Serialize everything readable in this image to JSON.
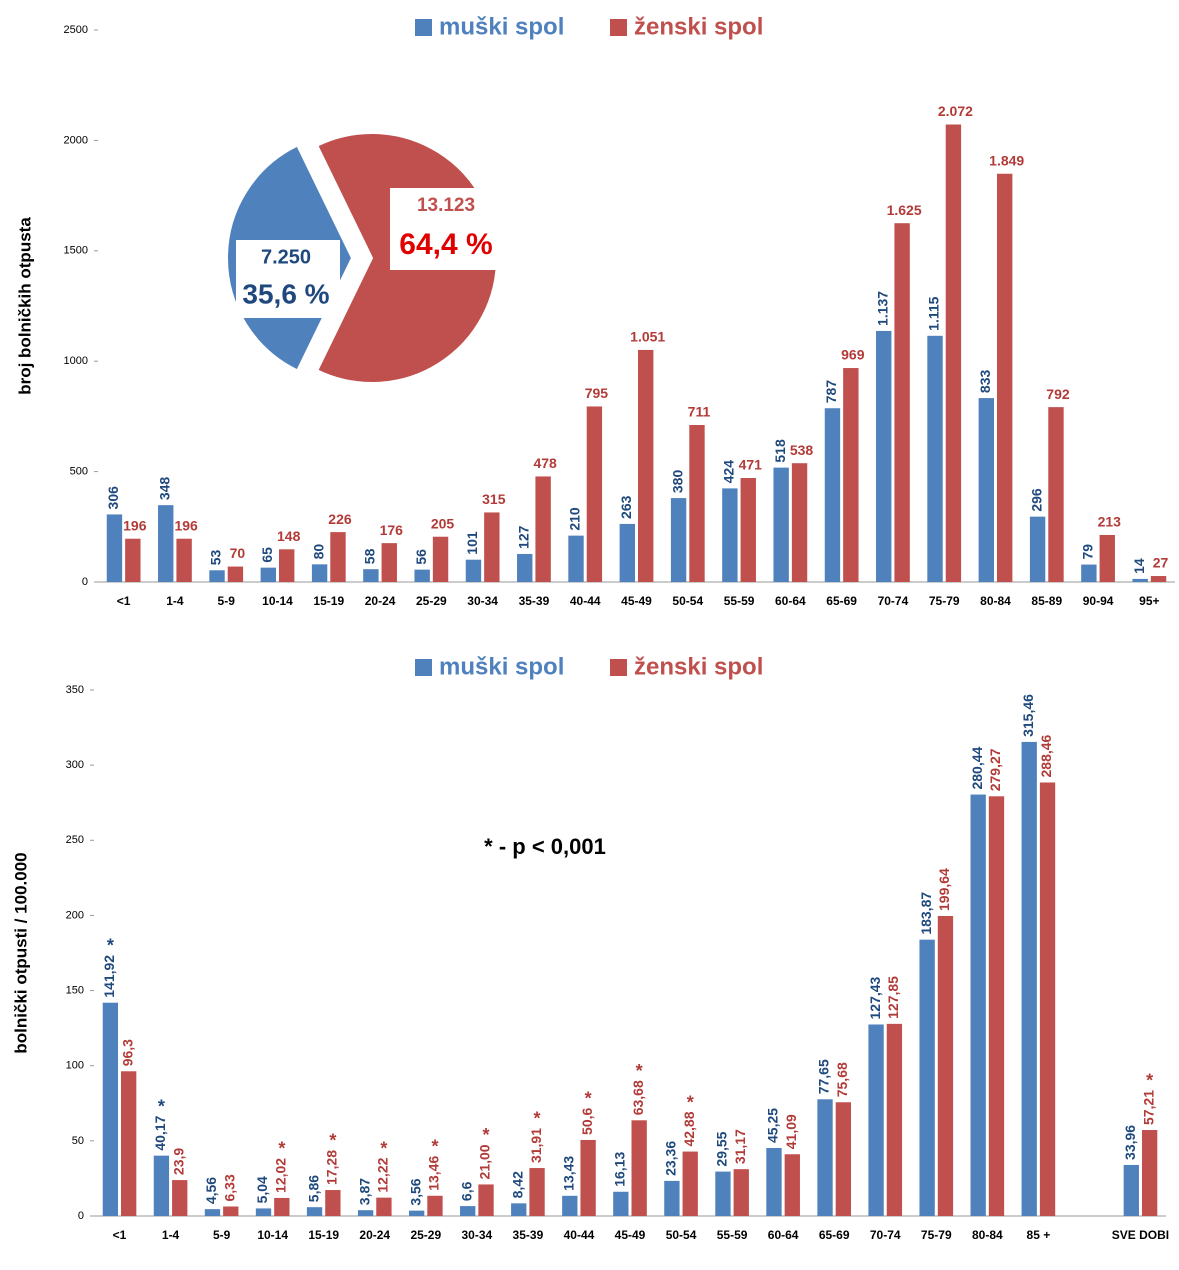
{
  "chart_data": [
    {
      "type": "bar",
      "y_label": "broj bolničkih otpusta",
      "categories": [
        "<1",
        "1-4",
        "5-9",
        "10-14",
        "15-19",
        "20-24",
        "25-29",
        "30-34",
        "35-39",
        "40-44",
        "45-49",
        "50-54",
        "55-59",
        "60-64",
        "65-69",
        "70-74",
        "75-79",
        "80-84",
        "85-89",
        "90-94",
        "95+"
      ],
      "series": [
        {
          "name": "muški spol",
          "color": "#4f81bd",
          "label_color": "#1f497d",
          "values": [
            306,
            348,
            53,
            65,
            80,
            58,
            56,
            101,
            127,
            210,
            263,
            380,
            424,
            518,
            787,
            1137,
            1115,
            833,
            296,
            79,
            14
          ],
          "value_labels": [
            "306",
            "348",
            "53",
            "65",
            "80",
            "58",
            "56",
            "101",
            "127",
            "210",
            "263",
            "380",
            "424",
            "518",
            "787",
            "1.137",
            "1.115",
            "833",
            "296",
            "79",
            "14"
          ]
        },
        {
          "name": "ženski spol",
          "color": "#c0504d",
          "label_color": "#b23b38",
          "values": [
            196,
            196,
            70,
            148,
            226,
            176,
            205,
            315,
            478,
            795,
            1051,
            711,
            471,
            538,
            969,
            1625,
            2072,
            1849,
            792,
            213,
            27
          ],
          "value_labels": [
            "196",
            "196",
            "70",
            "148",
            "226",
            "176",
            "205",
            "315",
            "478",
            "795",
            "1.051",
            "711",
            "471",
            "538",
            "969",
            "1.625",
            "2.072",
            "1.849",
            "792",
            "213",
            "27"
          ]
        }
      ],
      "ylim": [
        0,
        2500
      ],
      "yticks": [
        0,
        500,
        1000,
        1500,
        2000,
        2500
      ]
    },
    {
      "type": "pie",
      "values": [
        7250,
        13123
      ],
      "value_labels": [
        "7.250",
        "13.123"
      ],
      "percent": [
        35.6,
        64.4
      ],
      "percent_labels": [
        "35,6 %",
        "64,4 %"
      ],
      "colors": [
        "#4f81bd",
        "#c0504d"
      ]
    },
    {
      "type": "bar",
      "y_label": "bolnički otpusti / 100.000",
      "annotation": "* - p < 0,001",
      "categories": [
        "<1",
        "1-4",
        "5-9",
        "10-14",
        "15-19",
        "20-24",
        "25-29",
        "30-34",
        "35-39",
        "40-44",
        "45-49",
        "50-54",
        "55-59",
        "60-64",
        "65-69",
        "70-74",
        "75-79",
        "80-84",
        "85 +",
        null,
        "SVE DOBI"
      ],
      "series": [
        {
          "name": "muški spol",
          "color": "#4f81bd",
          "label_color": "#1f497d",
          "values": [
            141.92,
            40.17,
            4.56,
            5.04,
            5.86,
            3.87,
            3.56,
            6.6,
            8.42,
            13.43,
            16.13,
            23.36,
            29.55,
            45.25,
            77.65,
            127.43,
            183.87,
            280.44,
            315.46,
            null,
            33.96
          ],
          "value_labels": [
            "141,92",
            "40,17",
            "4,56",
            "5,04",
            "5,86",
            "3,87",
            "3,56",
            "6,6",
            "8,42",
            "13,43",
            "16,13",
            "23,36",
            "29,55",
            "45,25",
            "77,65",
            "127,43",
            "183,87",
            "280,44",
            "315,46",
            null,
            "33,96"
          ],
          "annotations": [
            "*",
            "*",
            null,
            null,
            null,
            null,
            null,
            null,
            null,
            null,
            null,
            null,
            null,
            null,
            null,
            null,
            null,
            null,
            null,
            null,
            null
          ]
        },
        {
          "name": "ženski spol",
          "color": "#c0504d",
          "label_color": "#b23b38",
          "values": [
            96.3,
            23.9,
            6.33,
            12.02,
            17.28,
            12.22,
            13.46,
            21.0,
            31.91,
            50.6,
            63.68,
            42.88,
            31.17,
            41.09,
            75.68,
            127.85,
            199.64,
            279.27,
            288.46,
            null,
            57.21
          ],
          "value_labels": [
            "96,3",
            "23,9",
            "6,33",
            "12,02",
            "17,28",
            "12,22",
            "13,46",
            "21,00",
            "31,91",
            "50,6",
            "63,68",
            "42,88",
            "31,17",
            "41,09",
            "75,68",
            "127,85",
            "199,64",
            "279,27",
            "288,46",
            null,
            "57,21"
          ],
          "annotations": [
            null,
            null,
            null,
            "*",
            "*",
            "*",
            "*",
            "*",
            "*",
            "*",
            "*",
            "*",
            null,
            null,
            null,
            null,
            null,
            null,
            null,
            null,
            "*"
          ]
        }
      ],
      "ylim": [
        0,
        350
      ],
      "yticks": [
        0,
        50,
        100,
        150,
        200,
        250,
        300,
        350
      ]
    }
  ]
}
